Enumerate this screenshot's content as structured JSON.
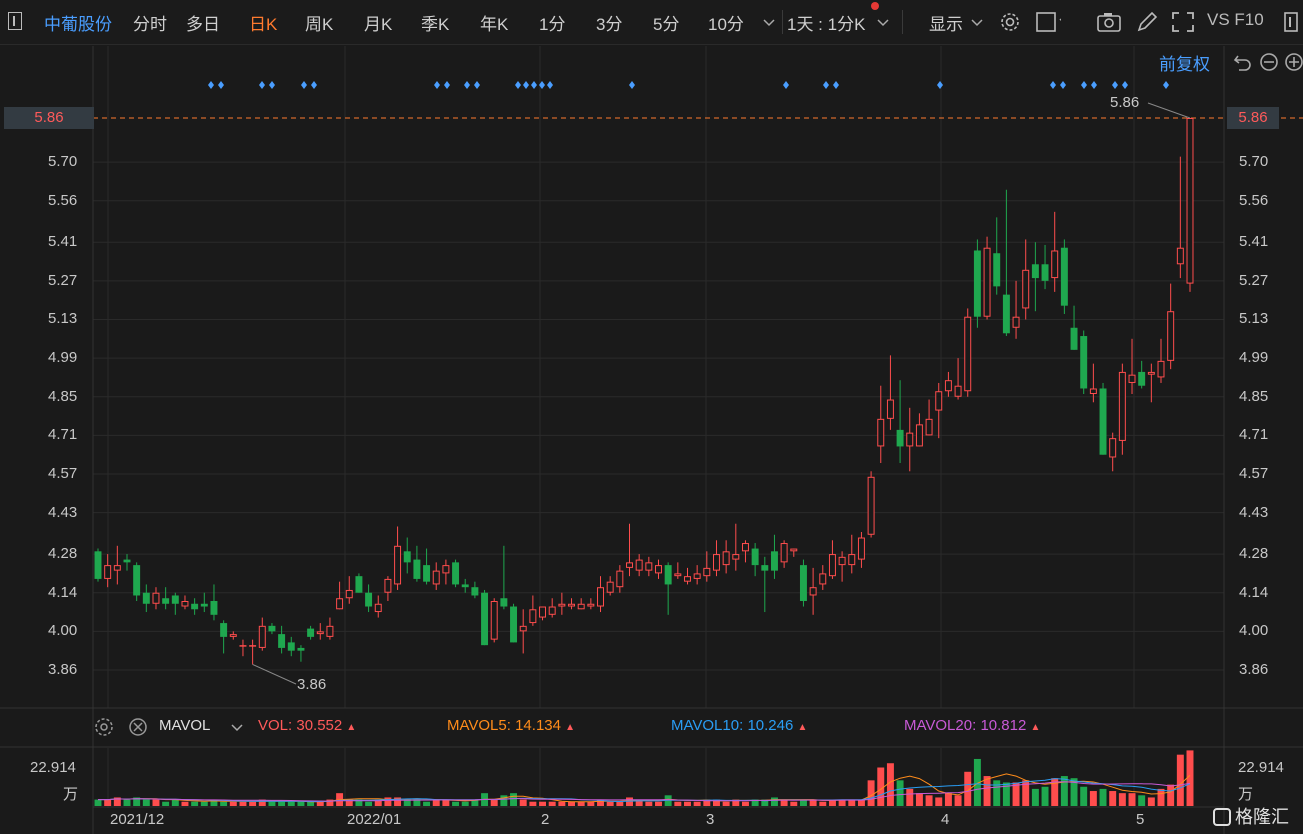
{
  "toolbar": {
    "stock_name": "中葡股份",
    "tabs": [
      "分时",
      "多日",
      "日K",
      "周K",
      "月K",
      "季K",
      "年K",
      "1分",
      "3分",
      "5分",
      "10分"
    ],
    "active_tab": "日K",
    "period_select": "1天 : 1分K",
    "display_label": "显示",
    "right_text": "VS F10"
  },
  "adjust_label": "前复权",
  "price_axis": {
    "ticks": [
      "5.86",
      "5.70",
      "5.56",
      "5.41",
      "5.27",
      "5.13",
      "4.99",
      "4.85",
      "4.71",
      "4.57",
      "4.43",
      "4.28",
      "4.14",
      "4.00",
      "3.86"
    ],
    "current": "5.86"
  },
  "annotations": {
    "high_label": "5.86",
    "low_label": "3.86"
  },
  "indicator": {
    "name": "MAVOL",
    "vol_label": "VOL:",
    "vol_value": "30.552",
    "mavol5_label": "MAVOL5:",
    "mavol5_value": "14.134",
    "mavol10_label": "MAVOL10:",
    "mavol10_value": "10.246",
    "mavol20_label": "MAVOL20:",
    "mavol20_value": "10.812"
  },
  "volume_axis": {
    "top": "22.914",
    "unit": "万"
  },
  "date_labels": [
    "2021/12",
    "2022/01",
    "2",
    "3",
    "4",
    "5"
  ],
  "watermark": "格隆汇",
  "colors": {
    "up": "#ff4d4d",
    "down": "#1fa84f",
    "accent": "#ff7a2e",
    "link": "#4a9eff"
  },
  "chart_data": {
    "type": "candlestick",
    "ylim": [
      3.86,
      5.86
    ],
    "dates_start_label": "2021/12",
    "candles": [
      [
        4.29,
        4.19,
        4.3,
        4.18
      ],
      [
        4.19,
        4.24,
        4.28,
        4.16
      ],
      [
        4.22,
        4.24,
        4.31,
        4.17
      ],
      [
        4.26,
        4.25,
        4.28,
        4.22
      ],
      [
        4.24,
        4.13,
        4.25,
        4.11
      ],
      [
        4.14,
        4.1,
        4.17,
        4.07
      ],
      [
        4.1,
        4.14,
        4.16,
        4.08
      ],
      [
        4.12,
        4.1,
        4.16,
        4.08
      ],
      [
        4.13,
        4.1,
        4.14,
        4.06
      ],
      [
        4.09,
        4.11,
        4.13,
        4.08
      ],
      [
        4.1,
        4.08,
        4.12,
        4.06
      ],
      [
        4.1,
        4.09,
        4.14,
        4.07
      ],
      [
        4.11,
        4.06,
        4.17,
        4.04
      ],
      [
        4.03,
        3.98,
        4.04,
        3.92
      ],
      [
        3.98,
        3.99,
        4.0,
        3.97
      ],
      [
        3.95,
        3.95,
        3.97,
        3.91
      ],
      [
        3.95,
        3.95,
        3.97,
        3.88
      ],
      [
        3.94,
        4.02,
        4.05,
        3.93
      ],
      [
        4.02,
        4.0,
        4.03,
        3.99
      ],
      [
        3.99,
        3.94,
        4.02,
        3.92
      ],
      [
        3.96,
        3.93,
        3.98,
        3.91
      ],
      [
        3.94,
        3.93,
        3.95,
        3.89
      ],
      [
        4.01,
        3.98,
        4.02,
        3.97
      ],
      [
        3.99,
        4.0,
        4.03,
        3.97
      ],
      [
        3.98,
        4.02,
        4.05,
        3.97
      ],
      [
        4.08,
        4.12,
        4.18,
        4.08
      ],
      [
        4.12,
        4.15,
        4.2,
        4.1
      ],
      [
        4.2,
        4.14,
        4.21,
        4.14
      ],
      [
        4.14,
        4.09,
        4.17,
        4.07
      ],
      [
        4.07,
        4.1,
        4.13,
        4.05
      ],
      [
        4.14,
        4.19,
        4.2,
        4.11
      ],
      [
        4.17,
        4.31,
        4.38,
        4.15
      ],
      [
        4.29,
        4.25,
        4.34,
        4.21
      ],
      [
        4.26,
        4.19,
        4.31,
        4.18
      ],
      [
        4.24,
        4.18,
        4.3,
        4.17
      ],
      [
        4.17,
        4.22,
        4.25,
        4.15
      ],
      [
        4.21,
        4.24,
        4.26,
        4.17
      ],
      [
        4.25,
        4.17,
        4.26,
        4.16
      ],
      [
        4.17,
        4.16,
        4.19,
        4.14
      ],
      [
        4.16,
        4.13,
        4.18,
        4.12
      ],
      [
        4.14,
        3.95,
        4.15,
        3.95
      ],
      [
        3.97,
        4.11,
        4.12,
        3.96
      ],
      [
        4.12,
        4.09,
        4.31,
        4.08
      ],
      [
        4.09,
        3.96,
        4.1,
        3.96
      ],
      [
        4.0,
        4.02,
        4.08,
        3.92
      ],
      [
        4.03,
        4.08,
        4.13,
        4.02
      ],
      [
        4.05,
        4.09,
        4.09,
        4.04
      ],
      [
        4.06,
        4.09,
        4.12,
        4.05
      ],
      [
        4.09,
        4.1,
        4.14,
        4.06
      ],
      [
        4.09,
        4.1,
        4.12,
        4.08
      ],
      [
        4.08,
        4.1,
        4.12,
        4.08
      ],
      [
        4.09,
        4.1,
        4.12,
        4.08
      ],
      [
        4.09,
        4.16,
        4.2,
        4.07
      ],
      [
        4.14,
        4.18,
        4.2,
        4.13
      ],
      [
        4.16,
        4.22,
        4.24,
        4.14
      ],
      [
        4.23,
        4.25,
        4.39,
        4.2
      ],
      [
        4.22,
        4.26,
        4.28,
        4.2
      ],
      [
        4.22,
        4.25,
        4.27,
        4.2
      ],
      [
        4.21,
        4.24,
        4.26,
        4.19
      ],
      [
        4.24,
        4.17,
        4.25,
        4.06
      ],
      [
        4.2,
        4.21,
        4.25,
        4.19
      ],
      [
        4.18,
        4.2,
        4.23,
        4.17
      ],
      [
        4.19,
        4.21,
        4.24,
        4.17
      ],
      [
        4.2,
        4.23,
        4.29,
        4.18
      ],
      [
        4.22,
        4.28,
        4.33,
        4.2
      ],
      [
        4.24,
        4.29,
        4.33,
        4.21
      ],
      [
        4.26,
        4.28,
        4.39,
        4.22
      ],
      [
        4.29,
        4.32,
        4.33,
        4.25
      ],
      [
        4.3,
        4.24,
        4.32,
        4.2
      ],
      [
        4.24,
        4.22,
        4.27,
        4.07
      ],
      [
        4.29,
        4.22,
        4.35,
        4.19
      ],
      [
        4.25,
        4.32,
        4.33,
        4.23
      ],
      [
        4.29,
        4.3,
        4.3,
        4.27
      ],
      [
        4.24,
        4.11,
        4.26,
        4.09
      ],
      [
        4.13,
        4.16,
        4.23,
        4.06
      ],
      [
        4.17,
        4.21,
        4.24,
        4.15
      ],
      [
        4.2,
        4.28,
        4.33,
        4.19
      ],
      [
        4.24,
        4.27,
        4.29,
        4.18
      ],
      [
        4.24,
        4.28,
        4.35,
        4.21
      ],
      [
        4.26,
        4.34,
        4.36,
        4.23
      ],
      [
        4.35,
        4.56,
        4.58,
        4.34
      ],
      [
        4.67,
        4.77,
        4.89,
        4.61
      ],
      [
        4.77,
        4.84,
        5.0,
        4.73
      ],
      [
        4.73,
        4.67,
        4.91,
        4.61
      ],
      [
        4.67,
        4.72,
        4.81,
        4.58
      ],
      [
        4.67,
        4.75,
        4.79,
        4.67
      ],
      [
        4.71,
        4.77,
        4.84,
        4.71
      ],
      [
        4.8,
        4.87,
        4.9,
        4.7
      ],
      [
        4.87,
        4.91,
        4.94,
        4.85
      ],
      [
        4.85,
        4.89,
        4.99,
        4.84
      ],
      [
        4.87,
        5.14,
        5.17,
        4.85
      ],
      [
        5.38,
        5.14,
        5.42,
        5.1
      ],
      [
        5.14,
        5.39,
        5.43,
        5.13
      ],
      [
        5.37,
        5.25,
        5.5,
        5.22
      ],
      [
        5.22,
        5.08,
        5.6,
        5.07
      ],
      [
        5.1,
        5.14,
        5.27,
        5.06
      ],
      [
        5.17,
        5.31,
        5.42,
        5.13
      ],
      [
        5.33,
        5.28,
        5.41,
        5.16
      ],
      [
        5.33,
        5.27,
        5.4,
        5.24
      ],
      [
        5.28,
        5.38,
        5.52,
        5.23
      ],
      [
        5.39,
        5.18,
        5.42,
        5.15
      ],
      [
        5.1,
        5.02,
        5.18,
        5.02
      ],
      [
        5.07,
        4.88,
        5.09,
        4.86
      ],
      [
        4.86,
        4.88,
        4.97,
        4.83
      ],
      [
        4.88,
        4.64,
        4.9,
        4.64
      ],
      [
        4.63,
        4.7,
        4.72,
        4.58
      ],
      [
        4.69,
        4.94,
        4.97,
        4.64
      ],
      [
        4.9,
        4.93,
        5.06,
        4.86
      ],
      [
        4.94,
        4.89,
        4.98,
        4.88
      ],
      [
        4.93,
        4.94,
        4.97,
        4.83
      ],
      [
        4.92,
        4.98,
        5.06,
        4.9
      ],
      [
        4.98,
        5.16,
        5.26,
        4.95
      ],
      [
        5.33,
        5.39,
        5.72,
        5.28
      ],
      [
        5.26,
        5.86,
        5.86,
        5.23
      ]
    ],
    "volume_max": 22.914,
    "volumes": [
      3,
      3,
      4,
      3,
      4,
      3,
      3,
      2,
      3,
      2,
      2,
      2,
      3,
      2,
      2,
      2,
      2,
      3,
      2,
      2,
      2,
      2,
      2,
      2,
      3,
      6,
      3,
      3,
      2,
      3,
      4,
      4,
      3,
      3,
      2,
      3,
      3,
      2,
      2,
      3,
      6,
      3,
      5,
      6,
      3,
      2,
      2,
      2,
      2,
      2,
      2,
      2,
      3,
      2,
      2,
      4,
      3,
      2,
      2,
      5,
      2,
      2,
      2,
      3,
      3,
      2,
      3,
      2,
      3,
      3,
      4,
      3,
      2,
      3,
      3,
      2,
      3,
      3,
      3,
      3,
      12,
      18,
      20,
      12,
      8,
      6,
      5,
      4,
      6,
      5,
      16,
      22,
      14,
      12,
      11,
      11,
      12,
      8,
      9,
      13,
      14,
      13,
      9,
      7,
      8,
      7,
      6,
      6,
      5,
      4,
      8,
      10,
      24,
      26
    ],
    "series": [
      {
        "name": "MAVOL5",
        "color": "#ff8c1a"
      },
      {
        "name": "MAVOL10",
        "color": "#2a9df4"
      },
      {
        "name": "MAVOL20",
        "color": "#c85ad6"
      }
    ]
  }
}
